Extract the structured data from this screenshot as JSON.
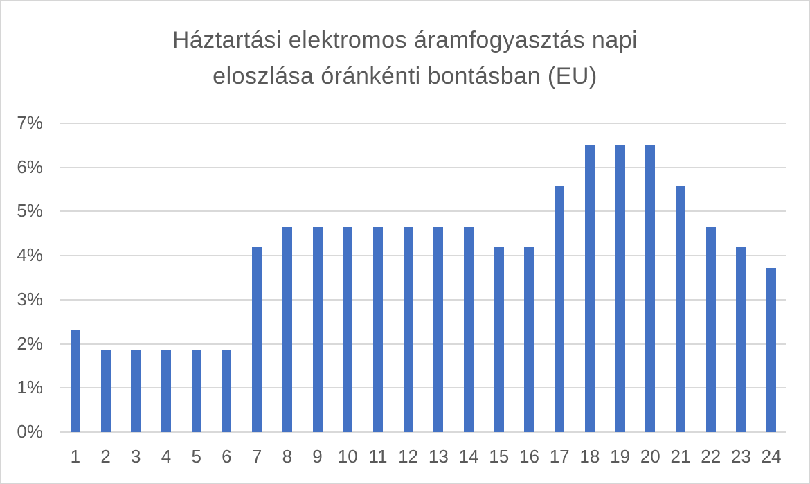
{
  "chart_data": {
    "type": "bar",
    "title": "Háztartási elektromos áramfogyasztás napi eloszlása óránkénti bontásban (EU)",
    "title_lines": [
      "Háztartási elektromos áramfogyasztás napi",
      "eloszlása óránkénti bontásban (EU)"
    ],
    "categories": [
      "1",
      "2",
      "3",
      "4",
      "5",
      "6",
      "7",
      "8",
      "9",
      "10",
      "11",
      "12",
      "13",
      "14",
      "15",
      "16",
      "17",
      "18",
      "19",
      "20",
      "21",
      "22",
      "23",
      "24"
    ],
    "values": [
      2.33,
      1.86,
      1.86,
      1.86,
      1.86,
      1.86,
      4.19,
      4.65,
      4.65,
      4.65,
      4.65,
      4.65,
      4.65,
      4.65,
      4.19,
      4.19,
      5.58,
      6.51,
      6.51,
      6.51,
      5.58,
      4.65,
      4.19,
      3.72
    ],
    "xlabel": "",
    "ylabel": "",
    "ylim": [
      0,
      7
    ],
    "y_ticks": [
      0,
      1,
      2,
      3,
      4,
      5,
      6,
      7
    ],
    "y_tick_labels": [
      "0%",
      "1%",
      "2%",
      "3%",
      "4%",
      "5%",
      "6%",
      "7%"
    ],
    "grid": true,
    "legend": false
  },
  "colors": {
    "bar": "#4472c4",
    "text": "#595959",
    "gridline": "#d9d9d9",
    "axis_line": "#d9d9d9",
    "frame_border": "#d6d6d6",
    "background": "#ffffff"
  }
}
